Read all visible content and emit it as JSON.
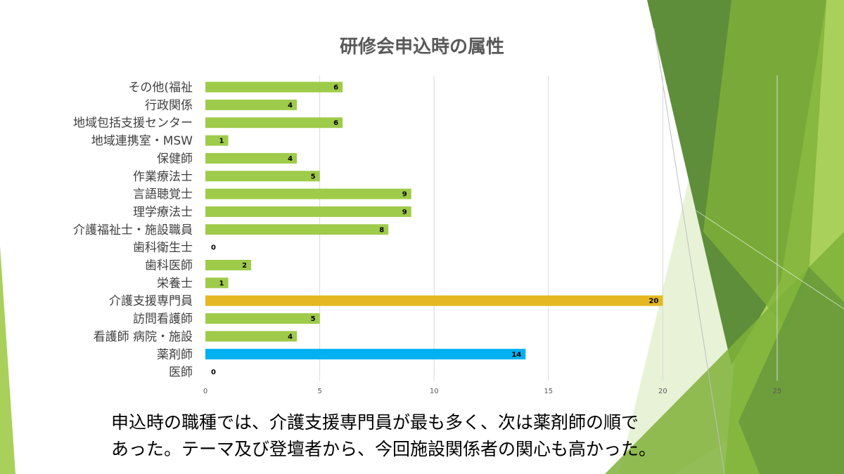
{
  "slide": {
    "caption_lines": [
      "申込時の職種では、介護支援専門員が最も多く、次は薬剤師の順で",
      "あった。テーマ及び登壇者から、今回施設関係者の関心も高かった。"
    ]
  },
  "colors": {
    "bar_default": "#9FCB4A",
    "bar_highlight_1": "#E5B823",
    "bar_highlight_2": "#00B0F0",
    "grid": "#D9D9D9",
    "deco_green_dark": "#5E8E3A",
    "deco_green_mid": "#7FB239",
    "deco_green_light": "#A8D05A",
    "deco_green_pale": "#D5E8B6"
  },
  "chart_data": {
    "type": "bar",
    "orientation": "horizontal",
    "title": "研修会申込時の属性",
    "categories": [
      "その他(福祉",
      "行政関係",
      "地域包括支援センター",
      "地域連携室・MSW",
      "保健師",
      "作業療法士",
      "言語聴覚士",
      "理学療法士",
      "介護福祉士・施設職員",
      "歯科衛生士",
      "歯科医師",
      "栄養士",
      "介護支援専門員",
      "訪問看護師",
      "看護師 病院・施設",
      "薬剤師",
      "医師"
    ],
    "values": [
      6,
      4,
      6,
      1,
      4,
      5,
      9,
      9,
      8,
      0,
      2,
      1,
      20,
      5,
      4,
      14,
      0
    ],
    "bar_colors": [
      "#9FCB4A",
      "#9FCB4A",
      "#9FCB4A",
      "#9FCB4A",
      "#9FCB4A",
      "#9FCB4A",
      "#9FCB4A",
      "#9FCB4A",
      "#9FCB4A",
      "#9FCB4A",
      "#9FCB4A",
      "#9FCB4A",
      "#E5B823",
      "#9FCB4A",
      "#9FCB4A",
      "#00B0F0",
      "#9FCB4A"
    ],
    "xlim": [
      0,
      25
    ],
    "xticks": [
      0,
      5,
      10,
      15,
      20,
      25
    ],
    "grid": true,
    "legend": "none",
    "data_labels": true
  }
}
